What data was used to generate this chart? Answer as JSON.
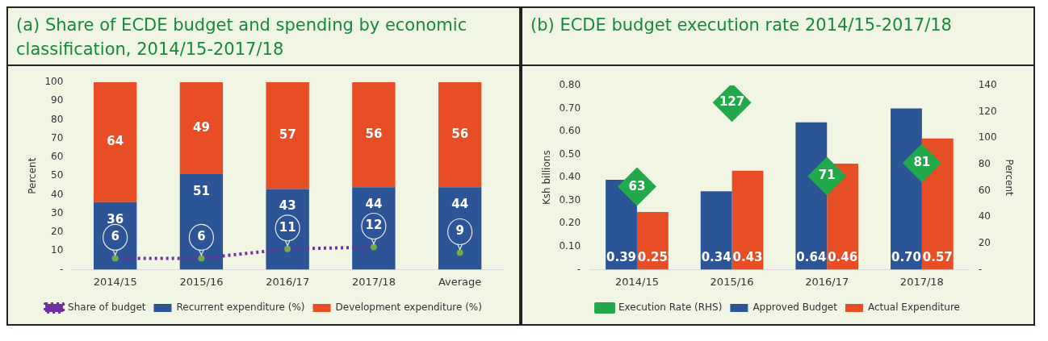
{
  "chart_data": [
    {
      "type": "bar",
      "title": "(a) Share of ECDE budget and spending by economic classification, 2014/15-2017/18",
      "ylabel": "Percent",
      "categories": [
        "2014/15",
        "2015/16",
        "2016/17",
        "2017/18",
        "Average"
      ],
      "stacked": true,
      "series": [
        {
          "name": "Recurrent expenditure (%)",
          "color": "#2b5597",
          "values": [
            36,
            51,
            43,
            44,
            44
          ]
        },
        {
          "name": "Development expenditure (%)",
          "color": "#e84e25",
          "values": [
            64,
            49,
            57,
            56,
            56
          ]
        },
        {
          "name": "Share of budget",
          "type": "line",
          "color": "#7030a0",
          "colors": [
            "#70ad47",
            "#70ad47",
            "#70ad47",
            "#70ad47",
            null
          ],
          "values": [
            6,
            6,
            11,
            12,
            null
          ],
          "line_style": "dotted",
          "marker": "circle"
        },
        {
          "type": "scatter",
          "color": "#70ad47",
          "values": [
            null,
            null,
            null,
            null,
            9
          ],
          "marker": "circle"
        }
      ],
      "ylim": [
        0,
        100
      ],
      "yticks": [
        {
          "value": 0,
          "label": "-"
        },
        10,
        20,
        30,
        40,
        50,
        60,
        70,
        80,
        90,
        100
      ],
      "legend": "bottom",
      "data_labels": true,
      "grid": false
    },
    {
      "type": "bar",
      "title": "(b) ECDE budget execution rate 2014/15-2017/18",
      "ylabel": "Ksh billions",
      "y2label": "Percent",
      "categories": [
        "2014/15",
        "2015/16",
        "2016/17",
        "2017/18"
      ],
      "series": [
        {
          "name": "Approved Budget",
          "color": "#2b5597",
          "values": [
            0.39,
            0.34,
            0.64,
            0.7
          ],
          "value_labels": [
            "0.39",
            "0.34",
            "0.64",
            "0.70"
          ]
        },
        {
          "name": "Actual Expenditure",
          "color": "#e84e25",
          "values": [
            0.25,
            0.43,
            0.46,
            0.57
          ],
          "value_labels": [
            "0.25",
            "0.43",
            "0.46",
            "0.57"
          ]
        },
        {
          "name": "Execution Rate (RHS)",
          "type": "scatter",
          "axis": "y2",
          "color": "#22a94c",
          "values": [
            63,
            127,
            71,
            81
          ],
          "value_labels": [
            "63",
            "127",
            "71",
            "81"
          ],
          "marker": "diamond"
        }
      ],
      "ylim": [
        0,
        0.8
      ],
      "yticks": [
        {
          "value": 0,
          "label": "-"
        },
        {
          "value": 0.1,
          "label": "0.10"
        },
        {
          "value": 0.2,
          "label": "0.20"
        },
        {
          "value": 0.3,
          "label": "0.30"
        },
        {
          "value": 0.4,
          "label": "0.40"
        },
        {
          "value": 0.5,
          "label": "0.50"
        },
        {
          "value": 0.6,
          "label": "0.60"
        },
        {
          "value": 0.7,
          "label": "0.70"
        },
        {
          "value": 0.8,
          "label": "0.80"
        }
      ],
      "y2lim": [
        0,
        140
      ],
      "y2ticks": [
        {
          "value": 0,
          "label": "-"
        },
        20,
        40,
        60,
        80,
        100,
        120,
        140
      ],
      "legend": "bottom",
      "grid": false
    }
  ]
}
